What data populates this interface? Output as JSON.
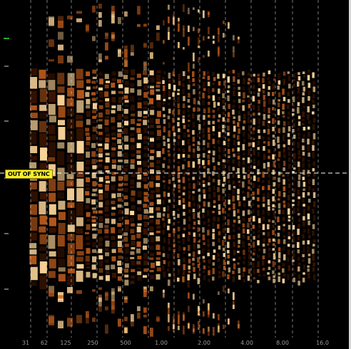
{
  "viewer": {
    "sync_label": "OUT OF SYNC",
    "colors": {
      "background": "#000000",
      "spectrum_dark": "#3a1400",
      "spectrum_mid": "#b5571a",
      "spectrum_bright": "#ffd79a",
      "grid_line": "#dcdcdc",
      "sync_badge": "#f6ef2a",
      "left_marker": "#2ea82e"
    }
  },
  "freq_axis": {
    "tick_labels": [
      "31",
      "62",
      "125",
      "250",
      "500",
      "1.00",
      "2.00",
      "4.00",
      "8.00",
      "16.0"
    ]
  }
}
